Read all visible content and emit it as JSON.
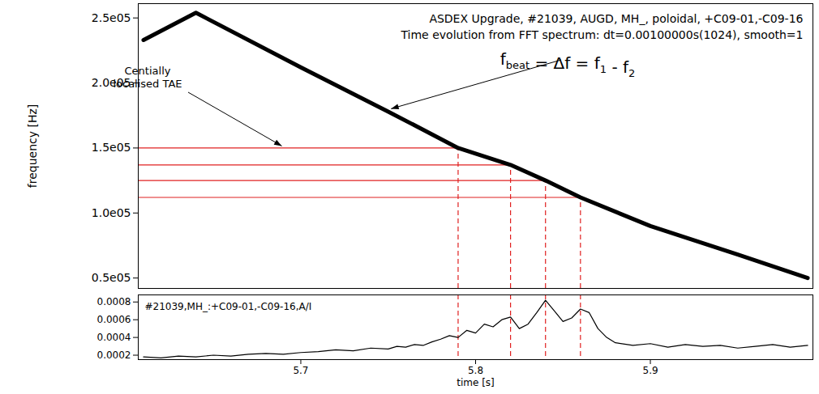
{
  "chart_data": [
    {
      "type": "line",
      "title": "ASDEX Upgrade, #21039, AUGD, MH_, poloidal, +C09-01,-C09-16",
      "subtitle": "Time evolution from FFT spectrum: dt=0.00100000s(1024), smooth=1",
      "ylabel": "frequency [Hz]",
      "tae_annotation": "Centially localised TAE",
      "beat_annotation": [
        [
          "f",
          "beat"
        ],
        [
          " = Δf = f",
          "1"
        ],
        [
          " - f",
          "2"
        ]
      ],
      "x": [
        5.61,
        5.64,
        5.7,
        5.75,
        5.79,
        5.82,
        5.84,
        5.86,
        5.9,
        5.95,
        5.99
      ],
      "values": [
        233000,
        254000,
        212000,
        178000,
        150000,
        137000,
        125000,
        112000,
        90000,
        68000,
        50000
      ],
      "color": "#000000",
      "markers": {
        "time": [
          5.79,
          5.82,
          5.84,
          5.86
        ],
        "freq": [
          150000,
          137000,
          125000,
          112000
        ]
      },
      "xlim": [
        5.607,
        5.993
      ],
      "ylim": [
        42000,
        261000
      ],
      "yticks": [
        {
          "value": 50000,
          "label": "0.5e05"
        },
        {
          "value": 100000,
          "label": "1.0e05"
        },
        {
          "value": 150000,
          "label": "1.5e05"
        },
        {
          "value": 200000,
          "label": "2.0e05"
        },
        {
          "value": 250000,
          "label": "2.5e05"
        }
      ],
      "tick_labels": "y"
    },
    {
      "type": "line",
      "title": "#21039,MH_:+C09-01,-C09-16,A/I",
      "xlabel": "time [s]",
      "x": [
        5.61,
        5.62,
        5.63,
        5.64,
        5.65,
        5.66,
        5.67,
        5.68,
        5.69,
        5.7,
        5.71,
        5.72,
        5.73,
        5.74,
        5.75,
        5.755,
        5.76,
        5.765,
        5.77,
        5.775,
        5.78,
        5.785,
        5.79,
        5.795,
        5.8,
        5.805,
        5.81,
        5.815,
        5.82,
        5.825,
        5.83,
        5.835,
        5.84,
        5.845,
        5.85,
        5.855,
        5.86,
        5.865,
        5.87,
        5.875,
        5.88,
        5.89,
        5.9,
        5.91,
        5.92,
        5.93,
        5.94,
        5.95,
        5.96,
        5.97,
        5.98,
        5.99
      ],
      "values": [
        0.00018,
        0.00017,
        0.00019,
        0.00018,
        0.0002,
        0.00019,
        0.00021,
        0.00022,
        0.00021,
        0.00023,
        0.00024,
        0.00026,
        0.00025,
        0.00028,
        0.00027,
        0.0003,
        0.00029,
        0.00032,
        0.00031,
        0.00035,
        0.00038,
        0.00042,
        0.0004,
        0.00048,
        0.00045,
        0.00055,
        0.00052,
        0.0006,
        0.00063,
        0.0005,
        0.00055,
        0.00068,
        0.00082,
        0.0007,
        0.00058,
        0.00062,
        0.00072,
        0.00068,
        0.0005,
        0.0004,
        0.00034,
        0.00031,
        0.00033,
        0.00029,
        0.00032,
        0.0003,
        0.00031,
        0.00028,
        0.0003,
        0.00032,
        0.00029,
        0.00031
      ],
      "color": "#000000",
      "xlim": [
        5.607,
        5.993
      ],
      "xticks": [
        5.7,
        5.8,
        5.9
      ],
      "ylim": [
        0.00015,
        0.00088
      ],
      "yticks": [
        0.0002,
        0.0004,
        0.0006,
        0.0008
      ]
    }
  ]
}
